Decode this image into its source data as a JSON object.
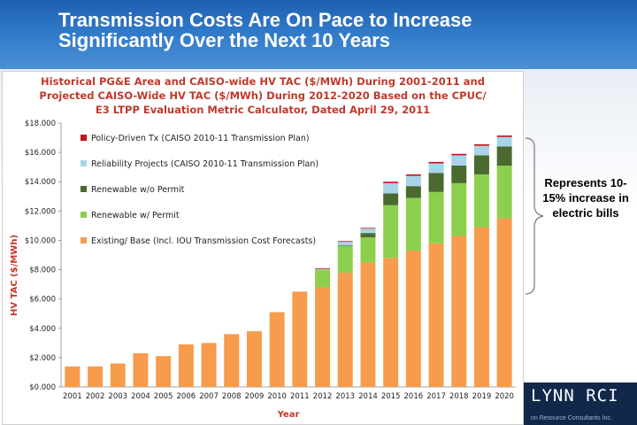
{
  "slide": {
    "title_line1": "Transmission Costs Are On Pace to Increase",
    "title_line2": "Significantly Over the Next 10 Years",
    "annotation": "Represents 10-15% increase in electric bills",
    "logo_text": "LYNN RCI",
    "logo_sub": "nn Resource Consultants Inc."
  },
  "colors": {
    "policy": "#c0141c",
    "reliability": "#a9d4e8",
    "renewable_wo_permit": "#4a6a2f",
    "renewable_w_permit": "#8ccf4d",
    "existing": "#f79b4c"
  },
  "chart_data": {
    "type": "bar",
    "stacked": true,
    "title_lines": [
      "Historical PG&E Area and CAISO-wide HV TAC ($/MWh) During 2001-2011  and",
      "Projected CAISO-Wide HV TAC ($/MWh) During 2012-2020 Based on the CPUC/",
      "E3 LTPP Evaluation Metric Calculator, Dated April 29, 2011"
    ],
    "xlabel": "Year",
    "ylabel": "HV TAC ($/MWh)",
    "ylim": [
      0,
      18
    ],
    "yticks": [
      "$0.000",
      "$2.000",
      "$4.000",
      "$6.000",
      "$8.000",
      "$10.000",
      "$12.000",
      "$14.000",
      "$16.000",
      "$18.000"
    ],
    "categories": [
      "2001",
      "2002",
      "2003",
      "2004",
      "2005",
      "2006",
      "2007",
      "2008",
      "2009",
      "2010",
      "2011",
      "2012",
      "2013",
      "2014",
      "2015",
      "2016",
      "2017",
      "2018",
      "2019",
      "2020"
    ],
    "series": [
      {
        "name": "Existing/ Base (Incl. IOU Transmission Cost Forecasts)",
        "color_key": "existing",
        "values": [
          1.4,
          1.4,
          1.6,
          2.3,
          2.1,
          2.9,
          3.0,
          3.6,
          3.8,
          5.1,
          6.5,
          6.8,
          7.8,
          8.5,
          8.8,
          9.3,
          9.8,
          10.3,
          10.9,
          11.5
        ]
      },
      {
        "name": "Renewable w/ Permit",
        "color_key": "renewable_w_permit",
        "values": [
          0,
          0,
          0,
          0,
          0,
          0,
          0,
          0,
          0,
          0,
          0,
          1.2,
          1.8,
          1.7,
          3.6,
          3.6,
          3.5,
          3.6,
          3.6,
          3.6
        ]
      },
      {
        "name": "Renewable w/o Permit",
        "color_key": "renewable_wo_permit",
        "values": [
          0,
          0,
          0,
          0,
          0,
          0,
          0,
          0,
          0,
          0,
          0,
          0,
          0.05,
          0.3,
          0.8,
          0.8,
          1.3,
          1.2,
          1.3,
          1.3
        ]
      },
      {
        "name": "Reliability Projects (CAISO 2010-11 Transmission Plan)",
        "color_key": "reliability",
        "values": [
          0,
          0,
          0,
          0,
          0,
          0,
          0,
          0,
          0,
          0,
          0,
          0.05,
          0.25,
          0.3,
          0.7,
          0.7,
          0.65,
          0.7,
          0.65,
          0.65
        ]
      },
      {
        "name": "Policy-Driven Tx (CAISO 2010-11 Transmission Plan)",
        "color_key": "policy",
        "values": [
          0,
          0,
          0,
          0,
          0,
          0,
          0,
          0,
          0,
          0,
          0,
          0.05,
          0.05,
          0.05,
          0.1,
          0.1,
          0.1,
          0.1,
          0.1,
          0.1
        ]
      }
    ],
    "legend_order": [
      4,
      3,
      2,
      1,
      0
    ],
    "legend_placement": "top-left"
  }
}
